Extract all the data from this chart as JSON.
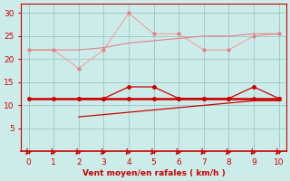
{
  "xlabel": "Vent moyen/en rafales ( km/h )",
  "x_full": [
    0,
    1,
    2,
    3,
    4,
    5,
    6,
    7,
    8,
    9,
    10
  ],
  "x_from2": [
    2,
    3,
    4,
    5,
    6,
    7,
    8,
    9,
    10
  ],
  "line_light_pink": [
    22,
    22,
    18,
    22,
    30,
    25.5,
    25.5,
    22,
    22,
    25,
    25.5
  ],
  "line_medium_pink": [
    22,
    22,
    22,
    22.5,
    23.5,
    24,
    24.5,
    25,
    25,
    25.5,
    25.5
  ],
  "line_dark_flat": [
    11.5,
    11.5,
    11.5,
    11.5,
    11.5,
    11.5,
    11.5,
    11.5,
    11.5,
    11.5,
    11.5
  ],
  "line_dark_peaked": [
    11.5,
    11.5,
    14,
    14,
    11.5,
    11.5,
    11.5,
    14,
    11.5
  ],
  "line_dark_bottom": [
    7.5,
    8.0,
    8.5,
    9.0,
    9.5,
    10.0,
    10.5,
    11.0,
    11.0
  ],
  "color_light_pink": "#f0a0a0",
  "color_medium_pink": "#e08080",
  "color_dark_red": "#cc0000",
  "bg_color": "#ccecea",
  "grid_color": "#a0ccca",
  "axis_color": "#cc0000",
  "tick_color": "#cc0000",
  "ylim": [
    0,
    32
  ],
  "xlim": [
    -0.3,
    10.3
  ],
  "yticks": [
    5,
    10,
    15,
    20,
    25,
    30
  ],
  "xticks": [
    0,
    1,
    2,
    3,
    4,
    5,
    6,
    7,
    8,
    9,
    10
  ]
}
